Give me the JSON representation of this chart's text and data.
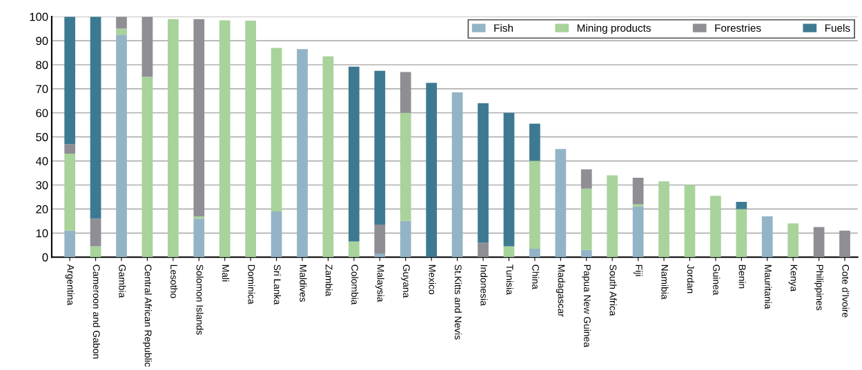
{
  "chart_data": {
    "type": "bar",
    "stacked": true,
    "categories": [
      "Argentina",
      "Cameroon and Gabon",
      "Gambia",
      "Central African Republic",
      "Lesotho",
      "Solomon Islands",
      "Mali",
      "Dominica",
      "Sri Lanka",
      "Maldives",
      "Zambia",
      "Colombia",
      "Malaysia",
      "Guyana",
      "Mexico",
      "St.Kitts and Nevis",
      "Indonesia",
      "Tunisia",
      "China",
      "Madagascar",
      "Papua New Guinea",
      "South Africa",
      "Fiji",
      "Namibia",
      "Jordan",
      "Guinea",
      "Benin",
      "Mauritania",
      "Kenya",
      "Philippines",
      "Cote d'Ivoire"
    ],
    "series": [
      {
        "name": "Fish",
        "color": "#93b4c6",
        "values": [
          11,
          0,
          92.5,
          0,
          0,
          16,
          0,
          0,
          19,
          86.5,
          0,
          0,
          1.5,
          15,
          0,
          68.5,
          0,
          0,
          3.5,
          45,
          3,
          0,
          21,
          0,
          0,
          0,
          0,
          17,
          0,
          0,
          0
        ]
      },
      {
        "name": "Mining products",
        "color": "#a8d39a",
        "values": [
          32,
          4.5,
          2.5,
          75,
          99,
          1,
          98.5,
          98.3,
          68,
          0,
          83.5,
          6.5,
          0,
          45,
          0,
          0,
          0,
          4.5,
          36.5,
          0,
          25.5,
          34,
          1,
          31.5,
          30,
          25.5,
          20,
          0,
          14,
          0,
          0
        ]
      },
      {
        "name": "Forestries",
        "color": "#8f8e94",
        "values": [
          4,
          11.5,
          5,
          25,
          0,
          82,
          0,
          0,
          0,
          0,
          0,
          0,
          12,
          17,
          0,
          0,
          6,
          0,
          0,
          0,
          8,
          0,
          11,
          0,
          0,
          0,
          0,
          0,
          0,
          12.5,
          11
        ]
      },
      {
        "name": "Fuels",
        "color": "#3d7a92",
        "values": [
          53,
          84,
          0,
          0,
          0,
          0,
          0,
          0,
          0,
          0,
          0,
          72.7,
          64,
          0,
          72.5,
          0,
          58,
          55.5,
          15.5,
          0,
          0,
          0,
          0,
          0,
          0,
          0,
          3,
          0,
          0,
          0,
          0
        ]
      }
    ],
    "ylim": [
      0,
      100
    ],
    "yticks": [
      0,
      10,
      20,
      30,
      40,
      50,
      60,
      70,
      80,
      90,
      100
    ],
    "grid": "y",
    "legend": "top right"
  }
}
